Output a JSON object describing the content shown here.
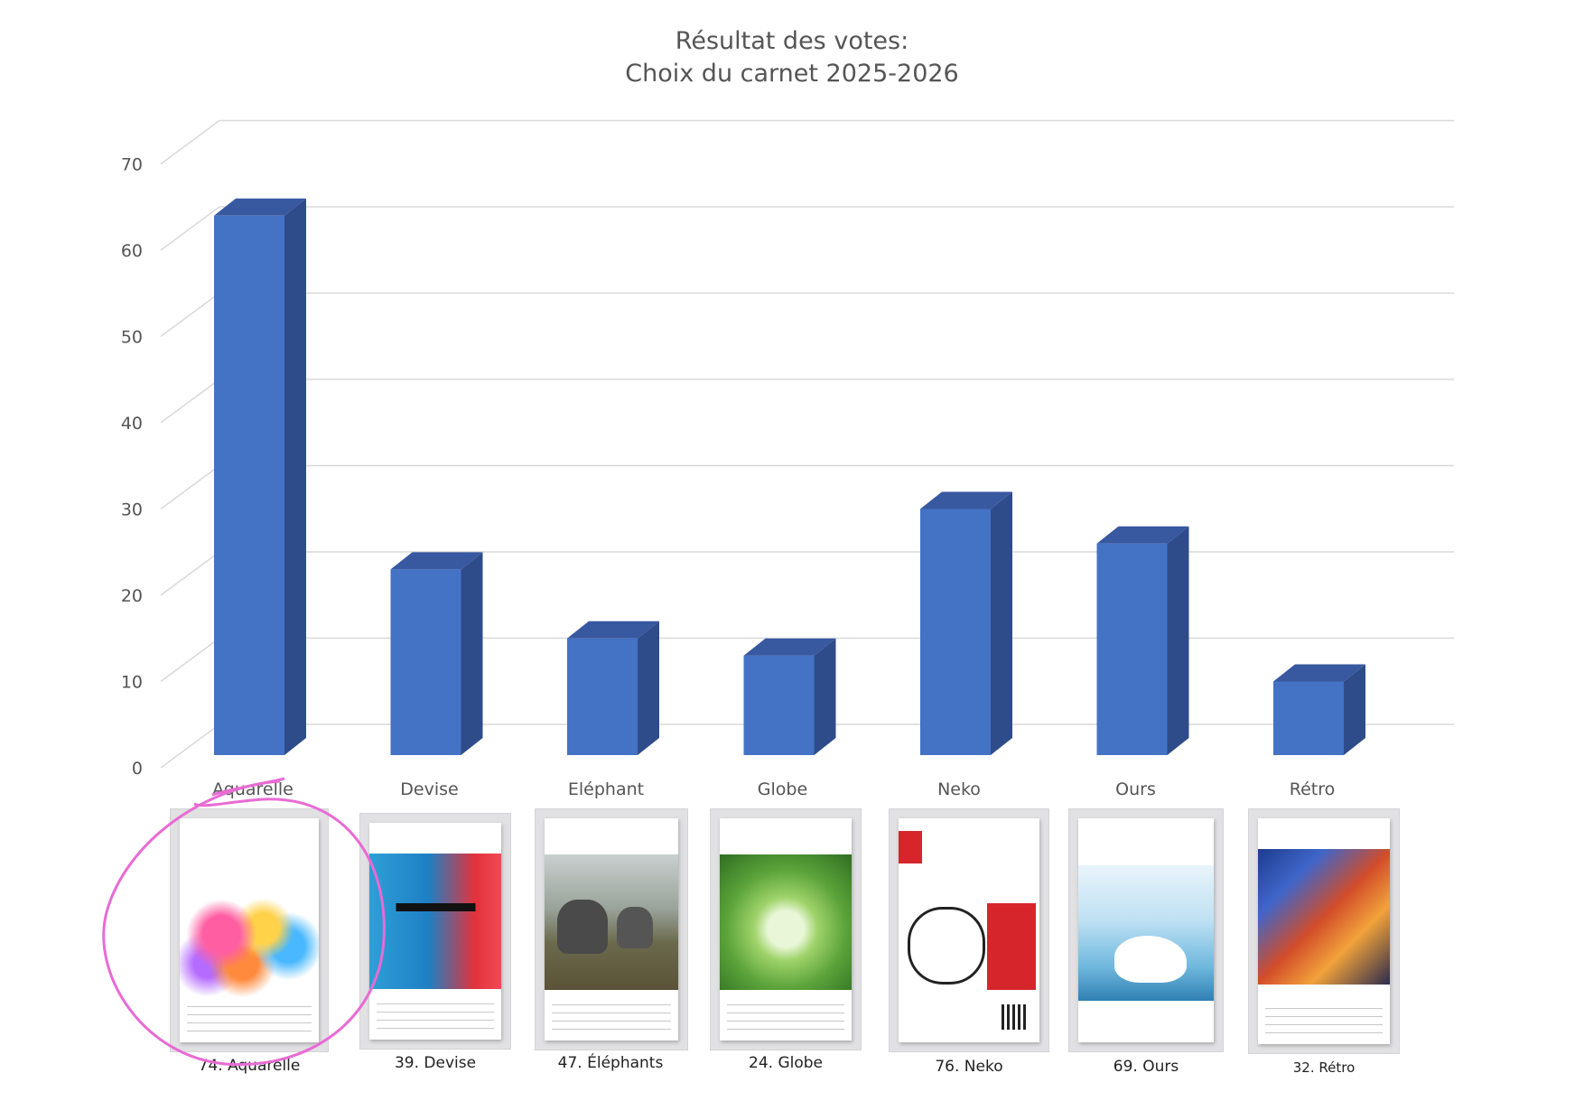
{
  "chart_data": {
    "type": "bar",
    "title": "Résultat des votes:",
    "subtitle": "Choix du carnet 2025-2026",
    "categories": [
      "Aquarelle",
      "Devise",
      "Eléphant",
      "Globe",
      "Neko",
      "Ours",
      "Rétro"
    ],
    "values": [
      64,
      23,
      15,
      13,
      30,
      26,
      10
    ],
    "ylim": [
      0,
      70
    ],
    "yticks": [
      0,
      10,
      20,
      30,
      40,
      50,
      60,
      70
    ],
    "xlabel": "",
    "ylabel": "",
    "grid": true,
    "style": "3d-column",
    "colors": {
      "front": "#4472c4",
      "side": "#2f4c8a",
      "top": "#3858a0",
      "grid": "#d9d9d9"
    }
  },
  "covers": [
    {
      "caption": "74. Aquarelle",
      "highlighted": true
    },
    {
      "caption": "39. Devise"
    },
    {
      "caption": "47. Éléphants"
    },
    {
      "caption": "24. Globe"
    },
    {
      "caption": "76. Neko"
    },
    {
      "caption": "69. Ours"
    },
    {
      "caption": "32. Rétro"
    }
  ],
  "highlight_color": "#e86bd4"
}
